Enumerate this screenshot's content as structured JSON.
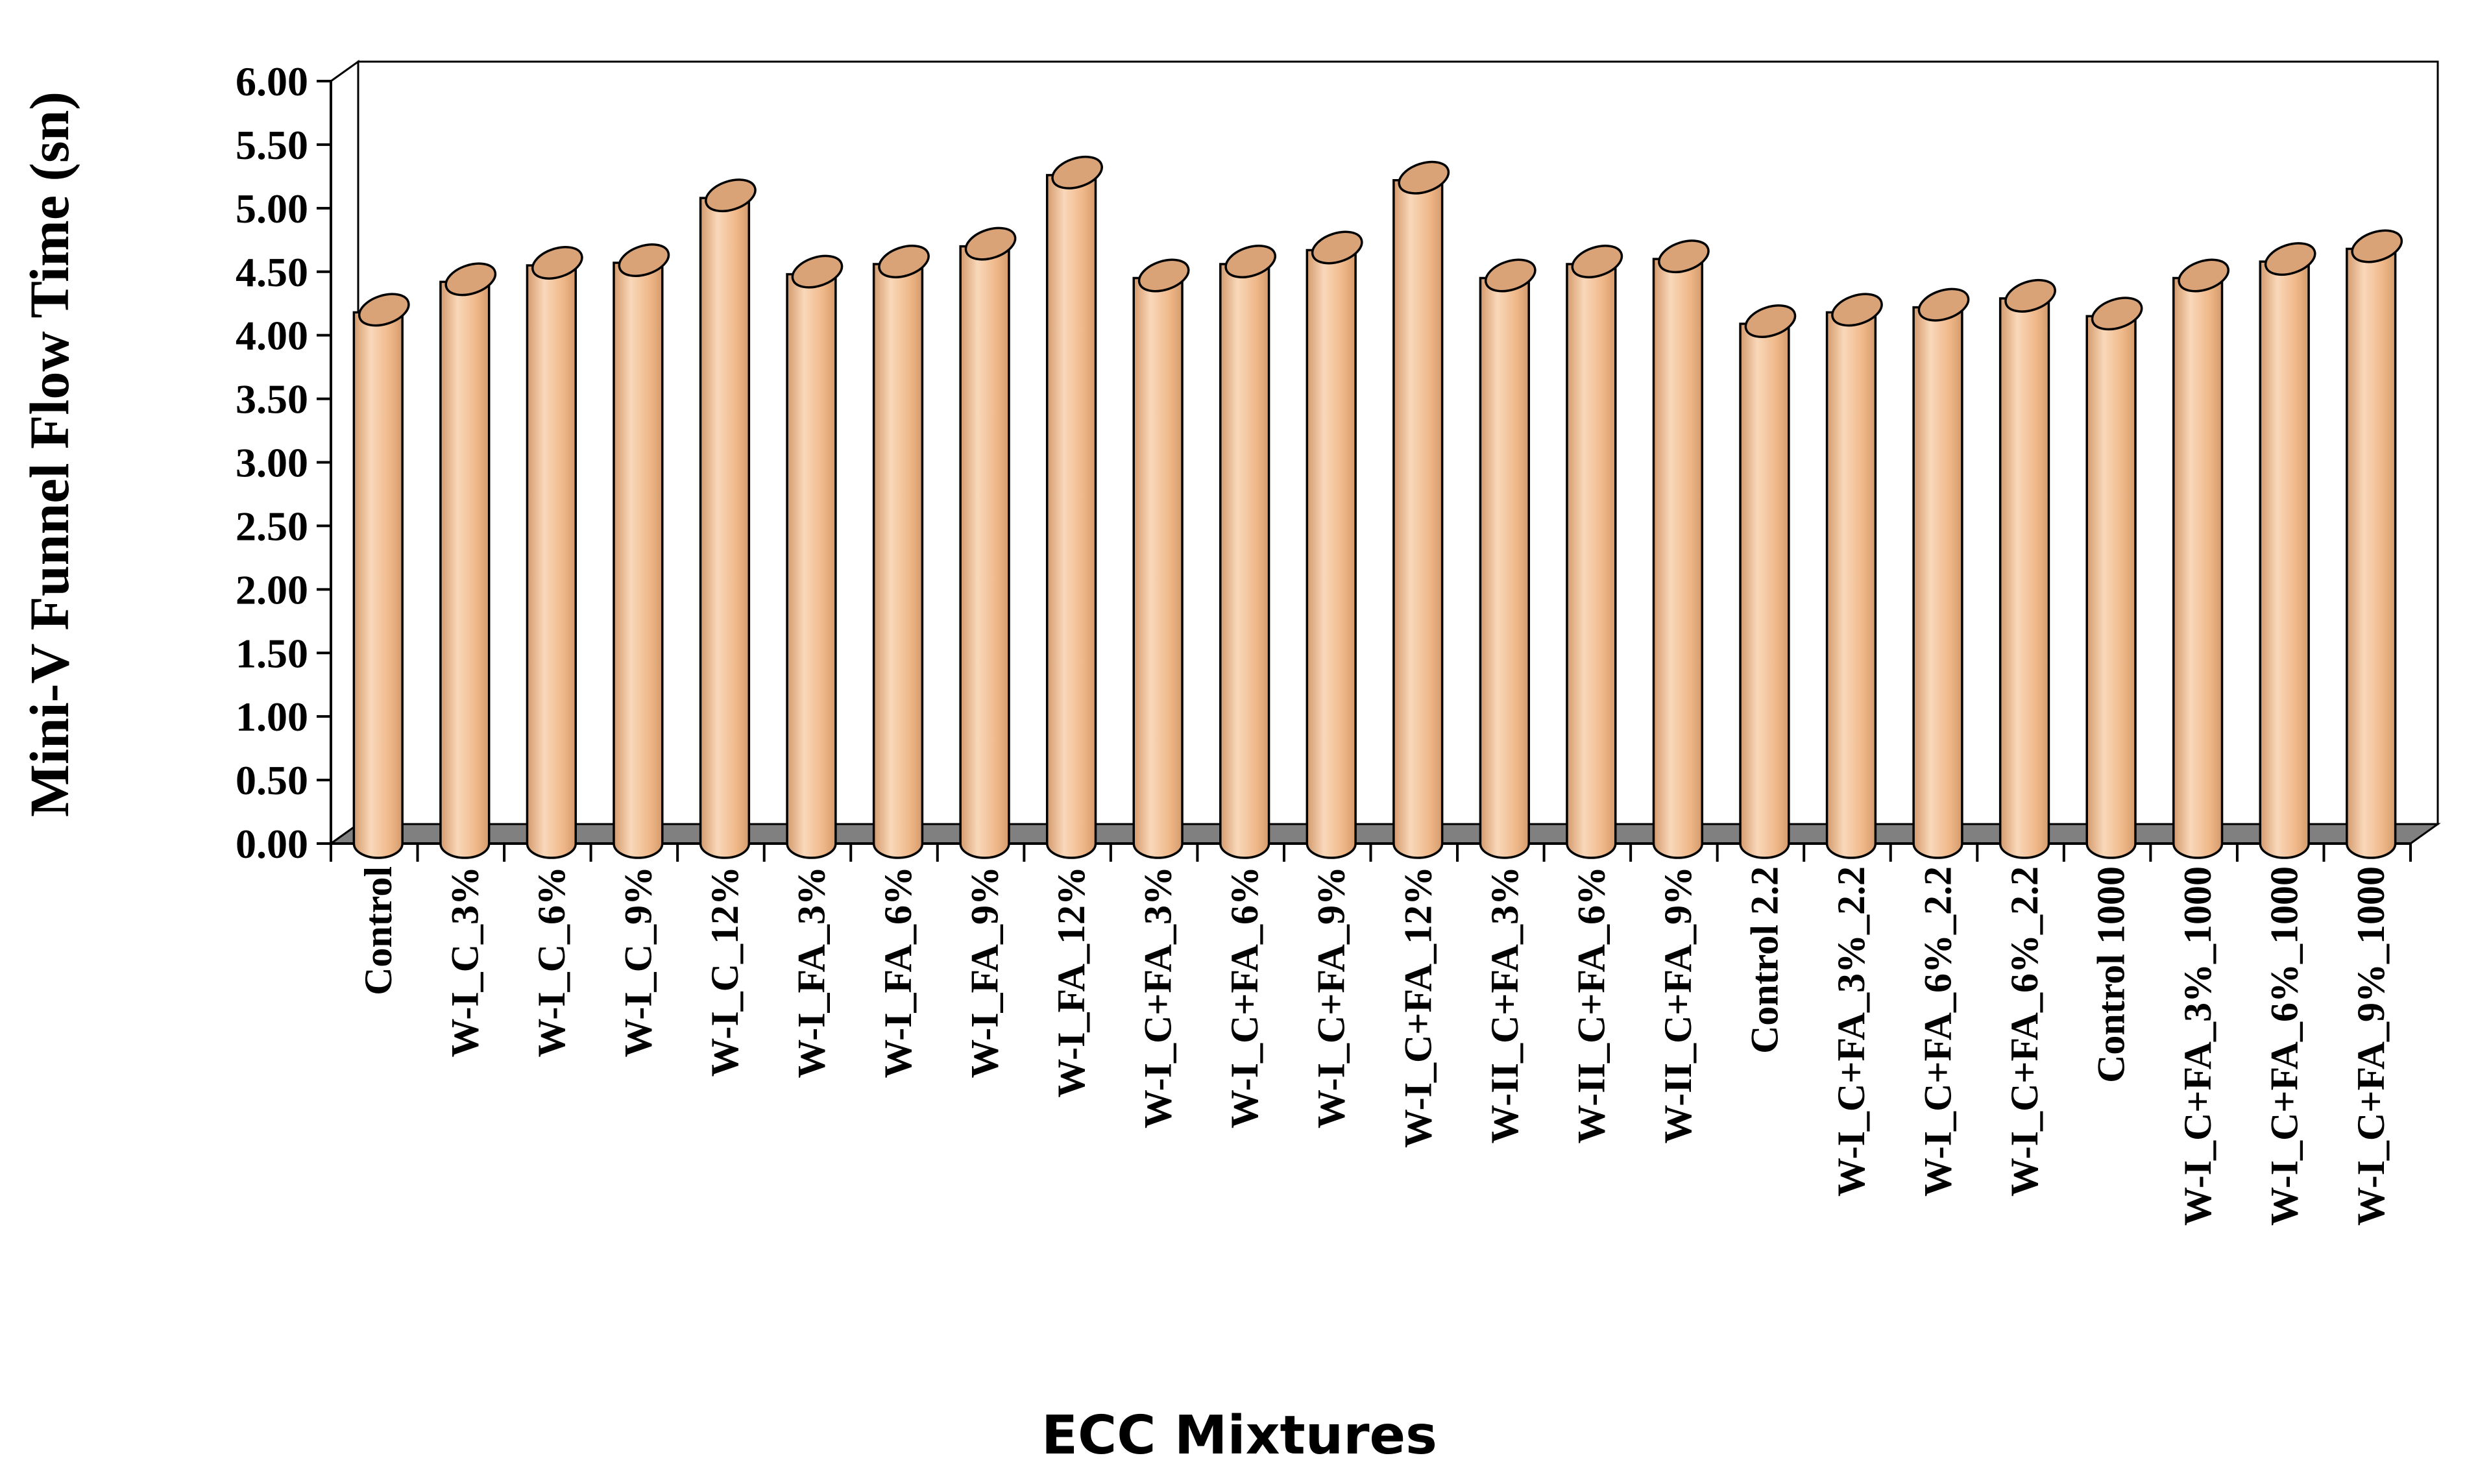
{
  "chart_data": {
    "type": "bar",
    "title": "",
    "xlabel": "ECC Mixtures",
    "ylabel": "Mini-V Funnel Flow Time (sn)",
    "ylim": [
      0,
      6
    ],
    "yticks": [
      "0.00",
      "0.50",
      "1.00",
      "1.50",
      "2.00",
      "2.50",
      "3.00",
      "3.50",
      "4.00",
      "4.50",
      "5.00",
      "5.50",
      "6.00"
    ],
    "grid": false,
    "legend": "none",
    "bar_style": "3d-cylinder",
    "categories": [
      "Control",
      "W-I_C_3%",
      "W-I_C_6%",
      "W-I_C_9%",
      "W-I_C_12%",
      "W-I_FA_3%",
      "W-I_FA_6%",
      "W-I_FA_9%",
      "W-I_FA_12%",
      "W-I_C+FA_3%",
      "W-I_C+FA_6%",
      "W-I_C+FA_9%",
      "W-I_C+FA_12%",
      "W-II_C+FA_3%",
      "W-II_C+FA_6%",
      "W-II_C+FA_9%",
      "Control 2.2",
      "W-I_C+FA_3%_2.2",
      "W-I_C+FA_6%_2.2",
      "W-I_C+FA_6%_2.2",
      "Control 1000",
      "W-I_C+FA_3%_1000",
      "W-I_C+FA_6%_1000",
      "W-I_C+FA_9%_1000"
    ],
    "values": [
      4.18,
      4.42,
      4.55,
      4.57,
      5.08,
      4.48,
      4.56,
      4.7,
      5.26,
      4.45,
      4.56,
      4.67,
      5.22,
      4.45,
      4.56,
      4.6,
      4.09,
      4.18,
      4.22,
      4.29,
      4.15,
      4.45,
      4.58,
      4.68
    ],
    "colors": {
      "bar_fill": "#EFB788",
      "bar_light": "#F9D8BA",
      "bar_dark": "#D49A6C",
      "bar_top": "#D9A277",
      "outline": "#000000",
      "floor": "#808080",
      "wall": "#ffffff"
    }
  }
}
